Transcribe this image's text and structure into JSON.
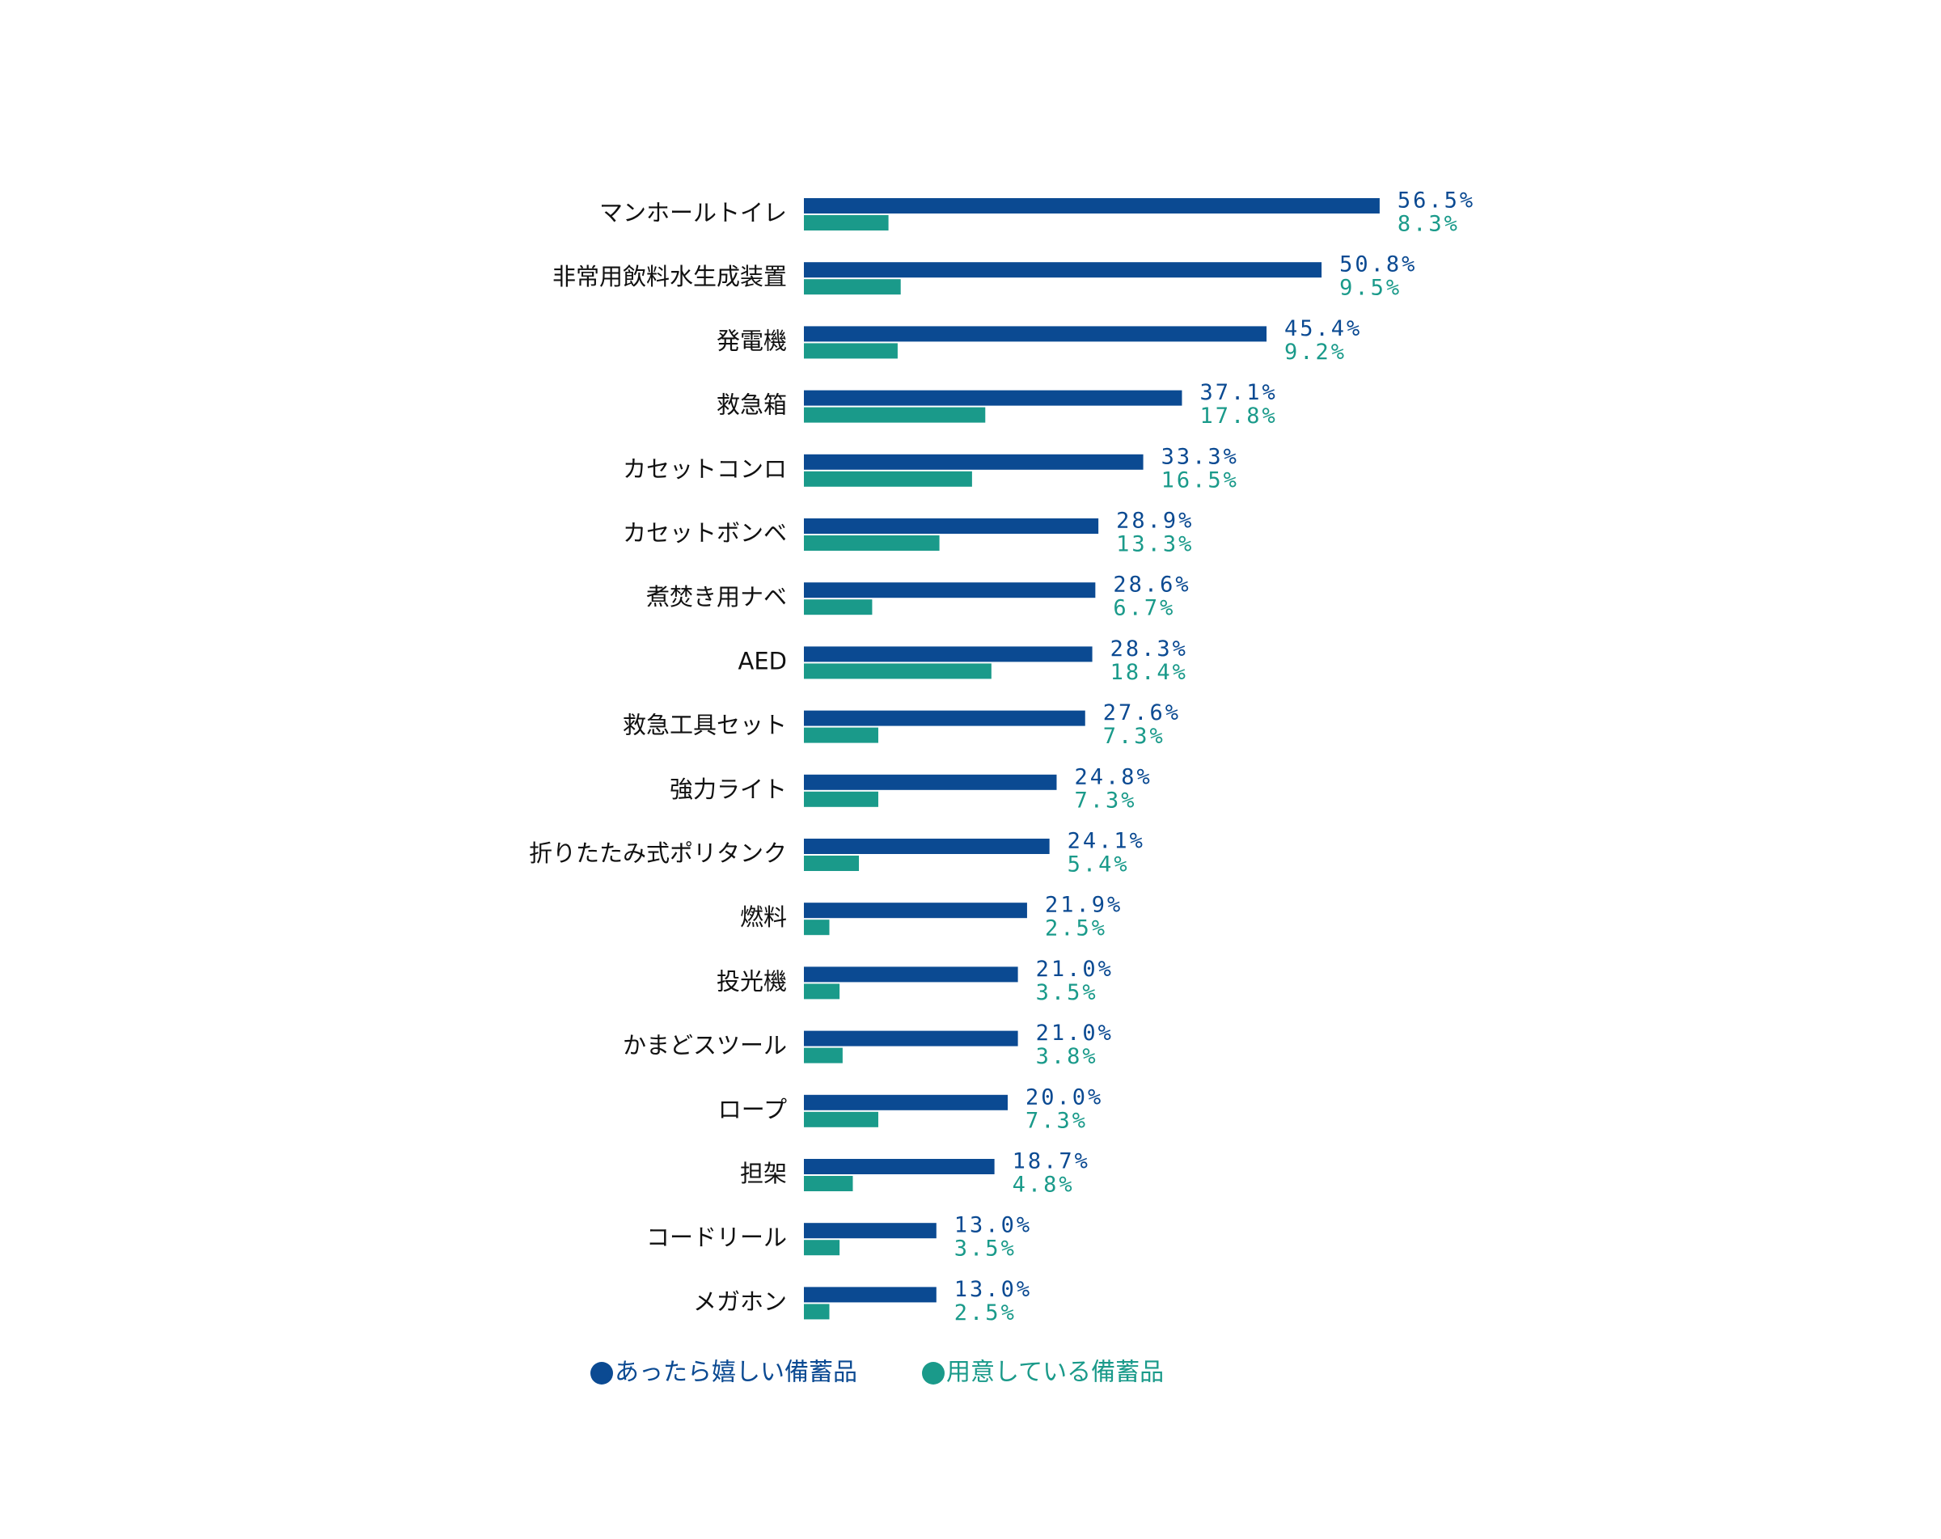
{
  "chart_data": {
    "type": "bar",
    "orientation": "horizontal",
    "categories": [
      "マンホールトイレ",
      "非常用飲料水生成装置",
      "発電機",
      "救急箱",
      "カセットコンロ",
      "カセットボンベ",
      "煮焚き用ナベ",
      "AED",
      "救急工具セット",
      "強力ライト",
      "折りたたみ式ポリタンク",
      "燃料",
      "投光機",
      "かまどスツール",
      "ロープ",
      "担架",
      "コードリール",
      "メガホン"
    ],
    "series": [
      {
        "name": "あったら嬉しい備蓄品",
        "color": "#0b4a92",
        "values": [
          56.5,
          50.8,
          45.4,
          37.1,
          33.3,
          28.9,
          28.6,
          28.3,
          27.6,
          24.8,
          24.1,
          21.9,
          21.0,
          21.0,
          20.0,
          18.7,
          13.0,
          13.0
        ],
        "value_labels": [
          "56.5%",
          "50.8%",
          "45.4%",
          "37.1%",
          "33.3%",
          "28.9%",
          "28.6%",
          "28.3%",
          "27.6%",
          "24.8%",
          "24.1%",
          "21.9%",
          "21.0%",
          "21.0%",
          "20.0%",
          "18.7%",
          "13.0%",
          "13.0%"
        ]
      },
      {
        "name": "用意している備蓄品",
        "color": "#1a9a8a",
        "values": [
          8.3,
          9.5,
          9.2,
          17.8,
          16.5,
          13.3,
          6.7,
          18.4,
          7.3,
          7.3,
          5.4,
          2.5,
          3.5,
          3.8,
          7.3,
          4.8,
          3.5,
          2.5
        ],
        "value_labels": [
          "8.3%",
          "9.5%",
          "9.2%",
          "17.8%",
          "16.5%",
          "13.3%",
          "6.7%",
          "18.4%",
          "7.3%",
          "7.3%",
          "5.4%",
          "2.5%",
          "3.5%",
          "3.8%",
          "7.3%",
          "4.8%",
          "3.5%",
          "2.5%"
        ]
      }
    ],
    "legend": "bottom"
  }
}
